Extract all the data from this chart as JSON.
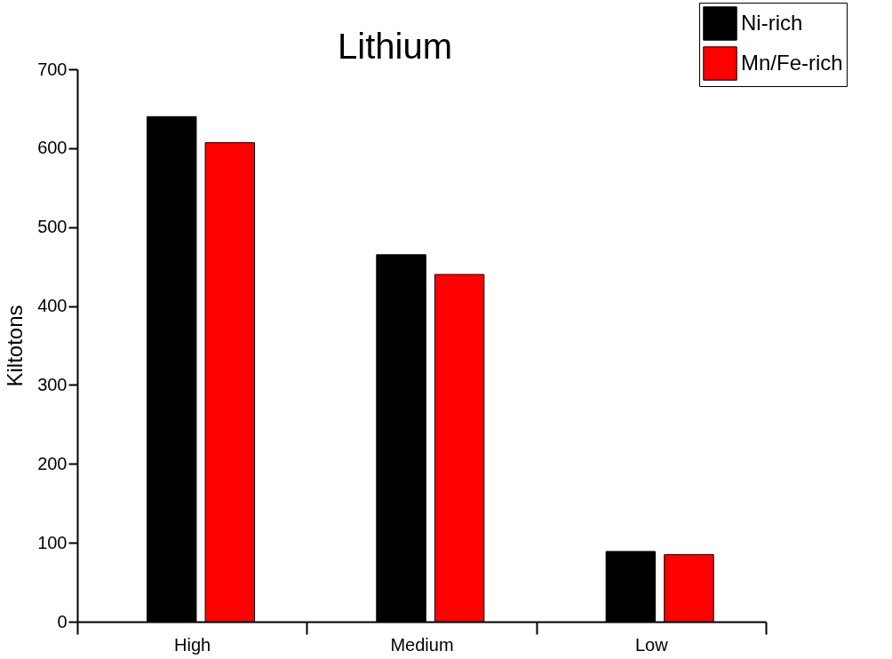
{
  "chart_data": {
    "type": "bar",
    "title": "Lithium",
    "ylabel": "Kiltotons",
    "categories": [
      "High",
      "Medium",
      "Low"
    ],
    "series": [
      {
        "name": "Ni-rich",
        "color": "#000000",
        "values": [
          640,
          465,
          89
        ]
      },
      {
        "name": "Mn/Fe-rich",
        "color": "#ff0000",
        "values": [
          607,
          440,
          85
        ]
      }
    ],
    "ylim": [
      0,
      700
    ],
    "yticks": [
      0,
      100,
      200,
      300,
      400,
      500,
      600,
      700
    ],
    "grid": false,
    "legend": "top right"
  }
}
